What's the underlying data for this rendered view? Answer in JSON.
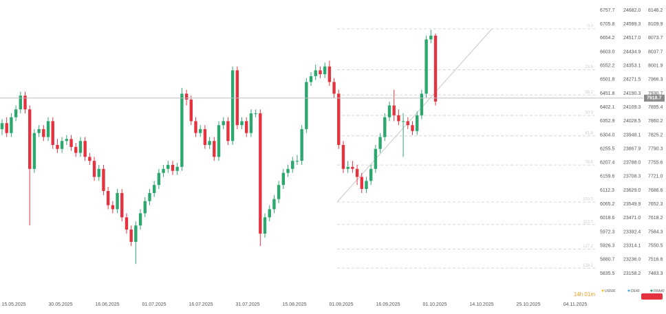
{
  "chart_data": {
    "type": "candlestick",
    "log_scale": true,
    "name": "FRA40",
    "legend_color": "#2ca86e",
    "up_color": "#2ca86e",
    "down_color": "#e5323f",
    "open": [
      7840,
      7855,
      7830,
      7870,
      7890,
      7925,
      7890,
      7740,
      7830,
      7840,
      7820,
      7860,
      7800,
      7790,
      7810,
      7815,
      7795,
      7780,
      7810,
      7770,
      7760,
      7720,
      7740,
      7685,
      7650,
      7640,
      7680,
      7620,
      7590,
      7560,
      7600,
      7630,
      7660,
      7680,
      7700,
      7730,
      7740,
      7750,
      7735,
      7745,
      7930,
      7915,
      7860,
      7830,
      7840,
      7800,
      7810,
      7770,
      7850,
      7860,
      7810,
      7990,
      7850,
      7860,
      7830,
      7880,
      7880,
      7580,
      7620,
      7640,
      7665,
      7700,
      7730,
      7740,
      7760,
      7760,
      7840,
      7960,
      7975,
      7990,
      7980,
      8000,
      7960,
      7930,
      7800,
      7740,
      7745,
      7740,
      7720,
      7690,
      7710,
      7740,
      7790,
      7820,
      7870,
      7900,
      7875,
      7860,
      7860,
      7850,
      7835,
      7875,
      7930,
      8070,
      8080
    ],
    "high": [
      7865,
      7870,
      7880,
      7900,
      7935,
      7935,
      7900,
      7840,
      7850,
      7850,
      7870,
      7870,
      7815,
      7820,
      7825,
      7825,
      7805,
      7820,
      7820,
      7780,
      7770,
      7750,
      7750,
      7695,
      7660,
      7690,
      7690,
      7630,
      7600,
      7610,
      7640,
      7670,
      7690,
      7710,
      7740,
      7750,
      7760,
      7760,
      7755,
      7945,
      7940,
      7925,
      7870,
      7850,
      7850,
      7820,
      7820,
      7860,
      7870,
      7870,
      8000,
      8000,
      7870,
      7870,
      7890,
      7890,
      7890,
      7630,
      7650,
      7675,
      7710,
      7740,
      7750,
      7770,
      7775,
      7850,
      7970,
      7985,
      8005,
      8000,
      8010,
      8015,
      7970,
      7940,
      7810,
      7760,
      7760,
      7750,
      7730,
      7720,
      7750,
      7800,
      7830,
      7880,
      7910,
      7940,
      7890,
      7880,
      7870,
      7860,
      7885,
      7940,
      8080,
      8095,
      8085
    ],
    "low": [
      7825,
      7820,
      7820,
      7860,
      7880,
      7880,
      7600,
      7730,
      7820,
      7810,
      7810,
      7790,
      7780,
      7780,
      7800,
      7785,
      7770,
      7770,
      7760,
      7750,
      7710,
      7710,
      7675,
      7640,
      7630,
      7630,
      7610,
      7580,
      7550,
      7506,
      7590,
      7620,
      7650,
      7670,
      7690,
      7720,
      7730,
      7725,
      7725,
      7735,
      7900,
      7850,
      7820,
      7820,
      7790,
      7790,
      7760,
      7760,
      7840,
      7800,
      7800,
      7840,
      7840,
      7820,
      7820,
      7870,
      7550,
      7570,
      7610,
      7630,
      7655,
      7690,
      7720,
      7730,
      7750,
      7750,
      7830,
      7950,
      7965,
      7970,
      7970,
      7950,
      7920,
      7790,
      7730,
      7730,
      7730,
      7700,
      7680,
      7680,
      7700,
      7730,
      7780,
      7810,
      7860,
      7860,
      7850,
      7770,
      7840,
      7825,
      7825,
      7865,
      7920,
      8060,
      7900
    ],
    "close": [
      7855,
      7830,
      7870,
      7890,
      7925,
      7890,
      7740,
      7830,
      7840,
      7820,
      7860,
      7800,
      7790,
      7810,
      7815,
      7795,
      7780,
      7810,
      7770,
      7760,
      7720,
      7740,
      7685,
      7650,
      7640,
      7680,
      7620,
      7590,
      7560,
      7600,
      7630,
      7660,
      7680,
      7700,
      7730,
      7740,
      7750,
      7735,
      7745,
      7930,
      7915,
      7860,
      7830,
      7840,
      7800,
      7810,
      7770,
      7850,
      7860,
      7810,
      7990,
      7850,
      7860,
      7830,
      7880,
      7880,
      7580,
      7620,
      7640,
      7665,
      7700,
      7730,
      7740,
      7760,
      7760,
      7840,
      7960,
      7975,
      7990,
      7980,
      8000,
      7960,
      7930,
      7800,
      7740,
      7745,
      7740,
      7720,
      7690,
      7710,
      7740,
      7790,
      7820,
      7870,
      7900,
      7875,
      7860,
      7860,
      7850,
      7835,
      7875,
      7930,
      8070,
      8080,
      7910
    ],
    "x_labels": [
      "15.05.2025",
      "30.05.2025",
      "16.06.2025",
      "01.07.2025",
      "16.07.2025",
      "31.07.2025",
      "15.08.2025",
      "01.09.2025",
      "16.09.2025",
      "01.10.2025",
      "14.10.2025",
      "25.10.2025",
      "04.11.2025"
    ],
    "ylim": [
      7483.3,
      8146.2
    ],
    "yticks": [
      8146.2,
      8109.9,
      8073.7,
      8037.7,
      8001.9,
      7966.3,
      7930.7,
      7895.4,
      7860.2,
      7825.2,
      7790.3,
      7755.6,
      {
        "value": 7721,
        "label": "7721.0"
      },
      7686.6,
      7652.3,
      7618.2,
      7584.3,
      7550.5,
      7516.8,
      7483.3
    ],
    "axes": [
      {
        "name": "US500",
        "legend_color": "#f2c230",
        "ylim": [
          5835.5,
          6757.7
        ],
        "yticks": [
          6757.7,
          6705.8,
          6654.2,
          {
            "value": 6603,
            "label": "6603.0"
          },
          6552.2,
          6501.8,
          6451.8,
          6402.1,
          6352.9,
          {
            "value": 6304,
            "label": "6304.0"
          },
          6255.5,
          6207.4,
          6159.6,
          6112.3,
          6065.2,
          6018.6,
          5972.3,
          5926.3,
          5880.7,
          5835.5
        ]
      },
      {
        "name": "DE40",
        "legend_color": "#4db3e6",
        "ylim": [
          23158.2,
          24682.0
        ],
        "yticks": [
          {
            "value": 24682,
            "label": "24682.0"
          },
          24599.3,
          {
            "value": 24517,
            "label": "24517.0"
          },
          24434.9,
          24353.1,
          24271.5,
          24190.3,
          24109.3,
          24028.5,
          23948.1,
          23867.9,
          {
            "value": 23788,
            "label": "23788.0"
          },
          23708.3,
          {
            "value": 23629,
            "label": "23629.0"
          },
          23549.9,
          {
            "value": 23471,
            "label": "23471.0"
          },
          23392.4,
          23314.1,
          {
            "value": 23236,
            "label": "23236.0"
          },
          23158.2
        ]
      }
    ],
    "last_price": 7918.7,
    "fib_labels": [
      "0.0",
      "23.6",
      "38.2",
      "50.0",
      "61.8",
      "78.6",
      "100.0",
      "113.0",
      "127.2",
      "138.2"
    ],
    "countdown": "14h 01m"
  }
}
